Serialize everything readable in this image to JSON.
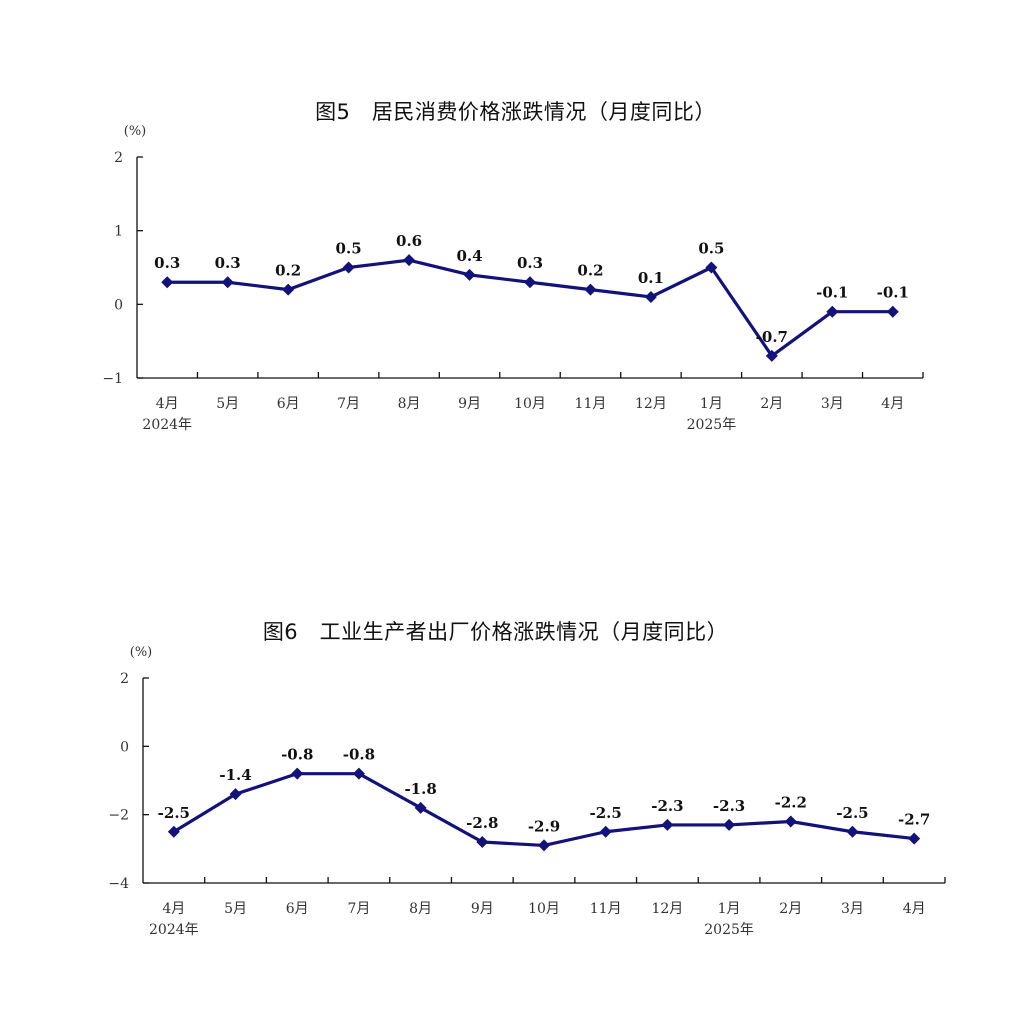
{
  "chart_data": [
    {
      "type": "line",
      "title": "图5　居民消费价格涨跌情况（月度同比）",
      "unit": "(%)",
      "categories": [
        "4月",
        "5月",
        "6月",
        "7月",
        "8月",
        "9月",
        "10月",
        "11月",
        "12月",
        "1月",
        "2月",
        "3月",
        "4月"
      ],
      "year_labels": [
        {
          "index": 0,
          "text": "2024年"
        },
        {
          "index": 9,
          "text": "2025年"
        }
      ],
      "series": [
        {
          "values": [
            0.3,
            0.3,
            0.2,
            0.5,
            0.6,
            0.4,
            0.3,
            0.2,
            0.1,
            0.5,
            -0.7,
            -0.1,
            -0.1
          ],
          "labels": [
            "0.3",
            "0.3",
            "0.2",
            "0.5",
            "0.6",
            "0.4",
            "0.3",
            "0.2",
            "0.1",
            "0.5",
            "-0.7",
            "-0.1",
            "-0.1"
          ]
        }
      ],
      "yticks": [
        2,
        1,
        0,
        -1
      ],
      "ytick_labels": [
        "2",
        "1",
        "0",
        "−1"
      ],
      "ylim": [
        -1,
        2
      ],
      "line_color": "#12127a",
      "grid": false
    },
    {
      "type": "line",
      "title": "图6　工业生产者出厂价格涨跌情况（月度同比）",
      "unit": "(%)",
      "categories": [
        "4月",
        "5月",
        "6月",
        "7月",
        "8月",
        "9月",
        "10月",
        "11月",
        "12月",
        "1月",
        "2月",
        "3月",
        "4月"
      ],
      "year_labels": [
        {
          "index": 0,
          "text": "2024年"
        },
        {
          "index": 9,
          "text": "2025年"
        }
      ],
      "series": [
        {
          "values": [
            -2.5,
            -1.4,
            -0.8,
            -0.8,
            -1.8,
            -2.8,
            -2.9,
            -2.5,
            -2.3,
            -2.3,
            -2.2,
            -2.5,
            -2.7
          ],
          "labels": [
            "-2.5",
            "-1.4",
            "-0.8",
            "-0.8",
            "-1.8",
            "-2.8",
            "-2.9",
            "-2.5",
            "-2.3",
            "-2.3",
            "-2.2",
            "-2.5",
            "-2.7"
          ]
        }
      ],
      "yticks": [
        2,
        0,
        -2,
        -4
      ],
      "ytick_labels": [
        "2",
        "0",
        "−2",
        "−4"
      ],
      "ylim": [
        -4,
        2
      ],
      "line_color": "#12127a",
      "grid": false
    }
  ]
}
